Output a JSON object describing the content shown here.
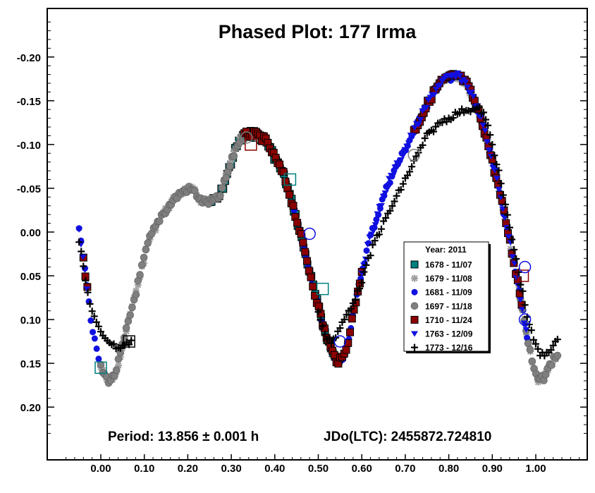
{
  "chart_data": {
    "type": "scatter",
    "title": "Phased Plot: 177 Irma",
    "xlim": [
      -0.125,
      1.125
    ],
    "ylim": [
      0.25,
      -0.25
    ],
    "y_inverted": true,
    "xticks": [
      "0.00",
      "0.10",
      "0.20",
      "0.30",
      "0.40",
      "0.50",
      "0.60",
      "0.70",
      "0.80",
      "0.90",
      "1.00"
    ],
    "xtick_values": [
      0,
      0.1,
      0.2,
      0.3,
      0.4,
      0.5,
      0.6,
      0.7,
      0.8,
      0.9,
      1.0
    ],
    "yticks": [
      "-0.20",
      "-0.15",
      "-0.10",
      "-0.05",
      "0.00",
      "0.05",
      "0.10",
      "0.15",
      "0.20"
    ],
    "ytick_values": [
      -0.2,
      -0.15,
      -0.1,
      -0.05,
      0,
      0.05,
      0.1,
      0.15,
      0.2
    ],
    "legend": {
      "title": "Year: 2011",
      "position": "center-right",
      "entries": [
        {
          "label": "1678 - 11/07",
          "marker": "square",
          "color": "#007f7f"
        },
        {
          "label": "1679 - 11/08",
          "marker": "asterisk",
          "color": "#a0a0a0"
        },
        {
          "label": "1681 - 11/09",
          "marker": "circle",
          "color": "#1010e0"
        },
        {
          "label": "1697 - 11/18",
          "marker": "circle",
          "color": "#7f7f7f"
        },
        {
          "label": "1710 - 11/24",
          "marker": "square",
          "color": "#8b0000"
        },
        {
          "label": "1763 - 12/09",
          "marker": "triangle-down",
          "color": "#1010e0"
        },
        {
          "label": "1773 - 12/16",
          "marker": "plus",
          "color": "#000000"
        }
      ]
    },
    "curve": [
      [
        -0.05,
        -0.005
      ],
      [
        -0.04,
        0.03
      ],
      [
        -0.03,
        0.07
      ],
      [
        -0.02,
        0.11
      ],
      [
        -0.01,
        0.135
      ],
      [
        0.0,
        0.155
      ],
      [
        0.01,
        0.165
      ],
      [
        0.02,
        0.17
      ],
      [
        0.03,
        0.165
      ],
      [
        0.04,
        0.15
      ],
      [
        0.05,
        0.13
      ],
      [
        0.06,
        0.11
      ],
      [
        0.07,
        0.09
      ],
      [
        0.08,
        0.07
      ],
      [
        0.09,
        0.05
      ],
      [
        0.1,
        0.03
      ],
      [
        0.11,
        0.01
      ],
      [
        0.12,
        0.0
      ],
      [
        0.13,
        -0.01
      ],
      [
        0.14,
        -0.02
      ],
      [
        0.15,
        -0.025
      ],
      [
        0.16,
        -0.032
      ],
      [
        0.17,
        -0.038
      ],
      [
        0.18,
        -0.043
      ],
      [
        0.19,
        -0.047
      ],
      [
        0.2,
        -0.049
      ],
      [
        0.21,
        -0.048
      ],
      [
        0.22,
        -0.043
      ],
      [
        0.23,
        -0.036
      ],
      [
        0.24,
        -0.034
      ],
      [
        0.25,
        -0.034
      ],
      [
        0.26,
        -0.036
      ],
      [
        0.27,
        -0.038
      ],
      [
        0.28,
        -0.05
      ],
      [
        0.29,
        -0.065
      ],
      [
        0.3,
        -0.08
      ],
      [
        0.31,
        -0.095
      ],
      [
        0.32,
        -0.105
      ],
      [
        0.33,
        -0.11
      ],
      [
        0.34,
        -0.112
      ],
      [
        0.35,
        -0.112
      ],
      [
        0.36,
        -0.11
      ],
      [
        0.37,
        -0.108
      ],
      [
        0.38,
        -0.103
      ],
      [
        0.39,
        -0.095
      ],
      [
        0.4,
        -0.085
      ],
      [
        0.41,
        -0.075
      ],
      [
        0.42,
        -0.065
      ],
      [
        0.43,
        -0.05
      ],
      [
        0.44,
        -0.033
      ],
      [
        0.45,
        -0.015
      ],
      [
        0.46,
        0.005
      ],
      [
        0.47,
        0.025
      ],
      [
        0.48,
        0.045
      ],
      [
        0.49,
        0.065
      ],
      [
        0.5,
        0.085
      ],
      [
        0.51,
        0.105
      ],
      [
        0.52,
        0.12
      ],
      [
        0.53,
        0.135
      ],
      [
        0.54,
        0.145
      ],
      [
        0.55,
        0.148
      ],
      [
        0.56,
        0.14
      ],
      [
        0.57,
        0.12
      ],
      [
        0.58,
        0.095
      ],
      [
        0.59,
        0.07
      ],
      [
        0.6,
        0.045
      ],
      [
        0.61,
        0.025
      ],
      [
        0.62,
        0.005
      ],
      [
        0.63,
        -0.01
      ],
      [
        0.64,
        -0.025
      ],
      [
        0.65,
        -0.04
      ],
      [
        0.66,
        -0.055
      ],
      [
        0.67,
        -0.065
      ],
      [
        0.68,
        -0.075
      ],
      [
        0.69,
        -0.085
      ],
      [
        0.7,
        -0.095
      ],
      [
        0.71,
        -0.105
      ],
      [
        0.72,
        -0.115
      ],
      [
        0.73,
        -0.125
      ],
      [
        0.74,
        -0.135
      ],
      [
        0.75,
        -0.145
      ],
      [
        0.76,
        -0.155
      ],
      [
        0.77,
        -0.163
      ],
      [
        0.78,
        -0.17
      ],
      [
        0.79,
        -0.174
      ],
      [
        0.8,
        -0.176
      ],
      [
        0.81,
        -0.178
      ],
      [
        0.82,
        -0.178
      ],
      [
        0.83,
        -0.175
      ],
      [
        0.84,
        -0.17
      ],
      [
        0.85,
        -0.16
      ],
      [
        0.86,
        -0.148
      ],
      [
        0.87,
        -0.135
      ],
      [
        0.88,
        -0.12
      ],
      [
        0.89,
        -0.1
      ],
      [
        0.9,
        -0.08
      ],
      [
        0.91,
        -0.06
      ],
      [
        0.92,
        -0.038
      ],
      [
        0.93,
        -0.015
      ],
      [
        0.94,
        0.01
      ],
      [
        0.95,
        0.035
      ],
      [
        0.96,
        0.06
      ],
      [
        0.97,
        0.09
      ],
      [
        0.98,
        0.12
      ],
      [
        0.99,
        0.145
      ],
      [
        1.0,
        0.165
      ],
      [
        1.01,
        0.17
      ],
      [
        1.02,
        0.165
      ],
      [
        1.03,
        0.155
      ],
      [
        1.04,
        0.145
      ],
      [
        1.05,
        0.14
      ]
    ],
    "curve_1773": [
      [
        -0.05,
        0.01
      ],
      [
        -0.04,
        0.04
      ],
      [
        -0.03,
        0.07
      ],
      [
        -0.02,
        0.09
      ],
      [
        -0.01,
        0.105
      ],
      [
        0.0,
        0.115
      ],
      [
        0.01,
        0.12
      ],
      [
        0.02,
        0.125
      ],
      [
        0.03,
        0.13
      ],
      [
        0.04,
        0.132
      ],
      [
        0.05,
        0.13
      ],
      [
        0.06,
        0.128
      ],
      [
        0.07,
        0.125
      ],
      [
        0.5,
        0.09
      ],
      [
        0.51,
        0.11
      ],
      [
        0.52,
        0.12
      ],
      [
        0.53,
        0.125
      ],
      [
        0.54,
        0.12
      ],
      [
        0.55,
        0.11
      ],
      [
        0.56,
        0.1
      ],
      [
        0.57,
        0.09
      ],
      [
        0.58,
        0.08
      ],
      [
        0.59,
        0.07
      ],
      [
        0.6,
        0.055
      ],
      [
        0.61,
        0.04
      ],
      [
        0.62,
        0.025
      ],
      [
        0.63,
        0.01
      ],
      [
        0.64,
        0.0
      ],
      [
        0.65,
        -0.01
      ],
      [
        0.66,
        -0.02
      ],
      [
        0.67,
        -0.03
      ],
      [
        0.68,
        -0.04
      ],
      [
        0.69,
        -0.05
      ],
      [
        0.7,
        -0.06
      ],
      [
        0.71,
        -0.07
      ],
      [
        0.72,
        -0.08
      ],
      [
        0.73,
        -0.09
      ],
      [
        0.74,
        -0.1
      ],
      [
        0.75,
        -0.11
      ],
      [
        0.76,
        -0.115
      ],
      [
        0.77,
        -0.12
      ],
      [
        0.78,
        -0.125
      ],
      [
        0.79,
        -0.128
      ],
      [
        0.8,
        -0.13
      ],
      [
        0.81,
        -0.133
      ],
      [
        0.82,
        -0.136
      ],
      [
        0.83,
        -0.138
      ],
      [
        0.84,
        -0.14
      ],
      [
        0.85,
        -0.14
      ],
      [
        0.86,
        -0.14
      ],
      [
        0.87,
        -0.14
      ],
      [
        0.88,
        -0.135
      ],
      [
        0.89,
        -0.12
      ],
      [
        0.9,
        -0.1
      ],
      [
        0.91,
        -0.08
      ],
      [
        0.92,
        -0.055
      ],
      [
        0.93,
        -0.03
      ],
      [
        0.94,
        -0.005
      ],
      [
        0.95,
        0.02
      ],
      [
        0.96,
        0.045
      ],
      [
        0.97,
        0.07
      ],
      [
        0.98,
        0.095
      ],
      [
        0.99,
        0.115
      ],
      [
        1.0,
        0.13
      ],
      [
        1.01,
        0.14
      ],
      [
        1.02,
        0.14
      ],
      [
        1.03,
        0.135
      ],
      [
        1.04,
        0.13
      ],
      [
        1.05,
        0.125
      ]
    ],
    "segments": [
      {
        "series": 0,
        "from": 0.25,
        "to": 0.55
      },
      {
        "series": 1,
        "from": 0.0,
        "to": 0.35
      },
      {
        "series": 1,
        "from": 0.74,
        "to": 1.05
      },
      {
        "series": 2,
        "from": -0.05,
        "to": 0.0
      },
      {
        "series": 2,
        "from": 0.44,
        "to": 0.98
      },
      {
        "series": 3,
        "from": 0.0,
        "to": 0.38
      },
      {
        "series": 3,
        "from": 0.96,
        "to": 1.05
      },
      {
        "series": 4,
        "from": -0.04,
        "to": -0.03
      },
      {
        "series": 4,
        "from": 0.33,
        "to": 0.6
      },
      {
        "series": 4,
        "from": 0.72,
        "to": 0.97
      },
      {
        "series": 5,
        "from": -0.05,
        "to": -0.03
      },
      {
        "series": 5,
        "from": 0.6,
        "to": 0.98
      }
    ],
    "highlighted_points": [
      {
        "series": 0,
        "x": 0.0,
        "y": 0.155
      },
      {
        "series": 0,
        "x": 0.51,
        "y": 0.065
      },
      {
        "series": 0,
        "x": 0.435,
        "y": -0.06
      },
      {
        "series": 4,
        "x": 0.97,
        "y": 0.05
      },
      {
        "series": 2,
        "x": 0.975,
        "y": 0.04
      },
      {
        "series": 2,
        "x": 0.975,
        "y": 0.1
      },
      {
        "series": 2,
        "x": 0.48,
        "y": 0.002
      },
      {
        "series": 2,
        "x": 0.55,
        "y": 0.125
      },
      {
        "series": 3,
        "x": 0.72,
        "y": -0.088
      },
      {
        "series": 4,
        "x": 0.345,
        "y": -0.1
      },
      {
        "series": 3,
        "x": 0.335,
        "y": -0.108
      },
      {
        "series": 6,
        "x": 0.065,
        "y": 0.125
      }
    ]
  },
  "footer": {
    "period": "Period: 13.856 ± 0.001 h",
    "jdo": "JDo(LTC): 2455872.724810"
  }
}
